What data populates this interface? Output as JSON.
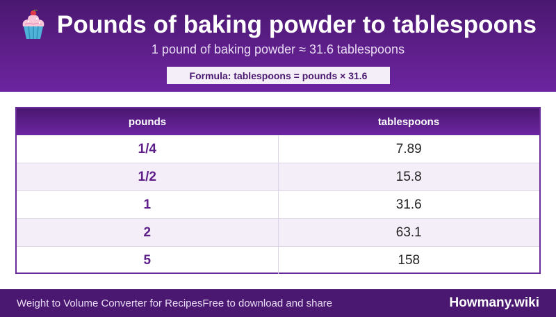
{
  "header": {
    "icon": "cupcake-icon",
    "title": "Pounds of baking powder to tablespoons",
    "subtitle": "1 pound of baking powder ≈ 31.6 tablespoons",
    "formula": "Formula: tablespoons = pounds × 31.6"
  },
  "table": {
    "columns": [
      "pounds",
      "tablespoons"
    ],
    "rows": [
      {
        "pounds": "1/4",
        "tablespoons": "7.89"
      },
      {
        "pounds": "1/2",
        "tablespoons": "15.8"
      },
      {
        "pounds": "1",
        "tablespoons": "31.6"
      },
      {
        "pounds": "2",
        "tablespoons": "63.1"
      },
      {
        "pounds": "5",
        "tablespoons": "158"
      }
    ]
  },
  "footer": {
    "left_text": "Weight to Volume Converter for Recipes",
    "middle_text": "Free to download and share",
    "brand": "Howmany.wiki"
  },
  "colors": {
    "primary": "#5e1f8a",
    "primary_dark": "#4a1870",
    "row_alt": "#f3eef7"
  }
}
